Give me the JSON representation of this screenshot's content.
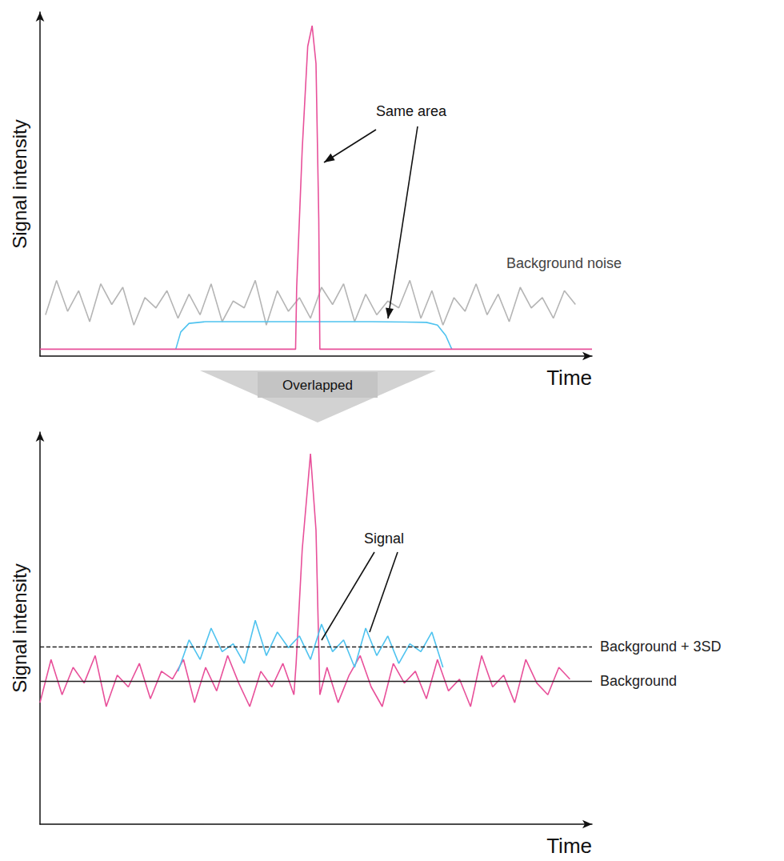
{
  "annotation": "Overlapped",
  "chart_data": [
    {
      "type": "line",
      "x_label": "Time",
      "y_label": "Signal intensity",
      "xlim": [
        0,
        100
      ],
      "ylim": [
        0,
        100
      ],
      "tick_labels": false,
      "grid": false,
      "annotations": [
        "Same area",
        "Background noise"
      ],
      "series": [
        {
          "color": "#b5b5b5",
          "line_style": "solid",
          "x": [
            1,
            3,
            5,
            7,
            9,
            11,
            13,
            15,
            17,
            19,
            21,
            23,
            25,
            27,
            29,
            31,
            33,
            35,
            37,
            39,
            41,
            43,
            45,
            47,
            49,
            51,
            53,
            55,
            57,
            59,
            61,
            63,
            65,
            67,
            69,
            71,
            73,
            75,
            77,
            79,
            81,
            83,
            85,
            87,
            89,
            91,
            93,
            95,
            97
          ],
          "values": [
            12,
            22,
            13,
            19,
            10,
            21,
            15,
            20,
            9,
            17,
            14,
            19,
            11,
            18,
            12,
            21,
            10,
            16,
            14,
            22,
            9,
            19,
            13,
            17,
            11,
            20,
            15,
            21,
            10,
            18,
            12,
            16,
            14,
            22,
            11,
            19,
            9,
            17,
            13,
            21,
            12,
            18,
            10,
            20,
            14,
            17,
            11,
            19,
            15
          ]
        },
        {
          "color": "#4fc3ef",
          "line_style": "solid",
          "x": [
            24.6,
            25.5,
            27,
            30,
            40,
            50,
            60,
            70,
            72,
            73.5,
            74.6
          ],
          "values": [
            2,
            7,
            9.5,
            10,
            10,
            10,
            10,
            9.8,
            9,
            6,
            2
          ]
        },
        {
          "color": "#e8509a",
          "line_style": "solid",
          "x": [
            0,
            46.3,
            46.5,
            47.5,
            48.5,
            49.3,
            50,
            50.5,
            50.7,
            100
          ],
          "values": [
            2,
            2,
            20,
            60,
            90,
            96,
            85,
            40,
            2,
            2
          ]
        }
      ]
    },
    {
      "type": "line",
      "x_label": "Time",
      "y_label": "Signal intensity",
      "xlim": [
        0,
        100
      ],
      "ylim": [
        0,
        100
      ],
      "tick_labels": false,
      "grid": false,
      "annotations": [
        "Signal"
      ],
      "reference_lines": [
        {
          "label": "Background + 3SD",
          "value": 45.3,
          "line_style": "dashed"
        },
        {
          "label": "Background",
          "value": 36.5,
          "line_style": "solid"
        }
      ],
      "series": [
        {
          "color": "#e8509a",
          "line_style": "solid",
          "x": [
            0,
            2,
            4,
            6,
            8,
            10,
            12,
            14,
            16,
            18,
            20,
            22,
            24,
            26,
            28,
            30,
            32,
            34,
            36,
            38,
            40,
            42,
            44,
            46,
            46.4,
            47.5,
            49,
            50,
            50.7,
            52,
            54,
            56,
            58,
            60,
            62,
            64,
            66,
            68,
            70,
            72,
            74,
            76,
            78,
            80,
            82,
            84,
            86,
            88,
            90,
            92,
            94,
            96
          ],
          "values": [
            31,
            42,
            33,
            40,
            36,
            43,
            30,
            38,
            35,
            41,
            32,
            39,
            37,
            42,
            31,
            40,
            34,
            43,
            36,
            30,
            39,
            35,
            41,
            33,
            41,
            70,
            94.5,
            75,
            33,
            40,
            31,
            38,
            43,
            35,
            30,
            41,
            36,
            39,
            32,
            42,
            34,
            37,
            30,
            43,
            35,
            38,
            31,
            42,
            36,
            33,
            40,
            37
          ]
        },
        {
          "color": "#4fc3ef",
          "line_style": "solid",
          "x": [
            25,
            27,
            29,
            31,
            33,
            35,
            37,
            39,
            41,
            43,
            45,
            47,
            49,
            51,
            53,
            55,
            57,
            59,
            61,
            63,
            65,
            67,
            69,
            71,
            73
          ],
          "values": [
            39,
            47,
            42,
            50,
            44,
            46,
            41,
            52,
            43,
            49,
            45,
            48,
            42,
            51,
            44,
            47,
            40,
            50,
            43,
            48,
            41,
            46,
            44,
            49,
            40
          ]
        }
      ]
    }
  ]
}
